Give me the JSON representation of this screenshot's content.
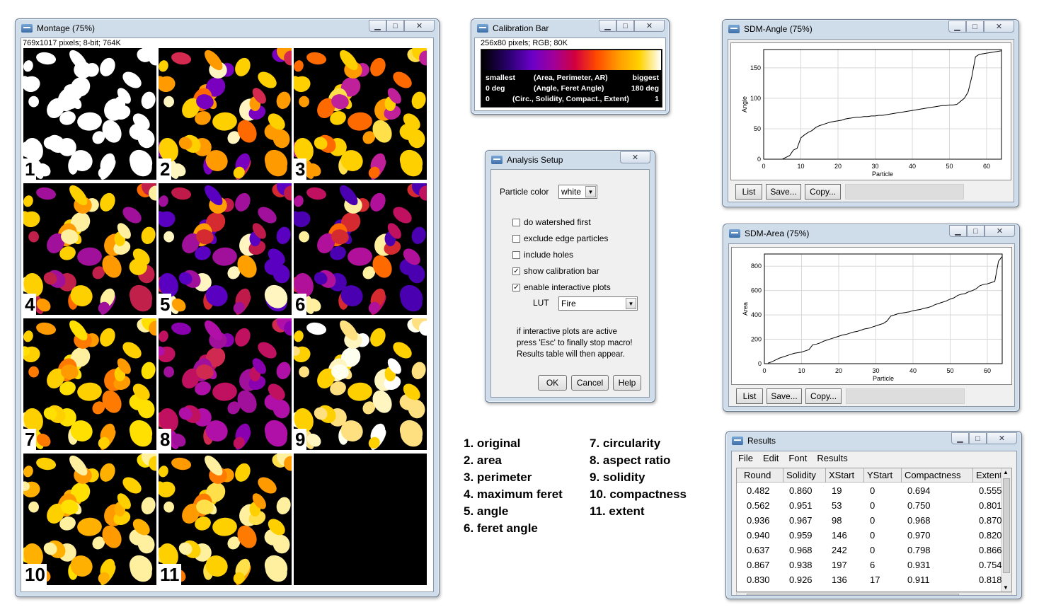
{
  "montage": {
    "title": "Montage (75%)",
    "info": "769x1017 pixels; 8-bit; 764K",
    "tiles": [
      {
        "label": "1",
        "palette": [
          "#ffffff"
        ]
      },
      {
        "label": "2",
        "palette": [
          "#ff9a00",
          "#ffd000",
          "#d42a50",
          "#7a00c0",
          "#ff6a00",
          "#fff5c0"
        ]
      },
      {
        "label": "3",
        "palette": [
          "#ff9a00",
          "#ffd000",
          "#ff6a00",
          "#c0209a",
          "#ffe04a"
        ]
      },
      {
        "label": "4",
        "palette": [
          "#ff6a00",
          "#ff9a00",
          "#c0204a",
          "#ffd000",
          "#a0109a",
          "#fff0a0"
        ]
      },
      {
        "label": "5",
        "palette": [
          "#c01a4a",
          "#d42a30",
          "#ffa000",
          "#fff5c0",
          "#5a00c0",
          "#a0109a"
        ]
      },
      {
        "label": "6",
        "palette": [
          "#b0109a",
          "#c01060",
          "#d42a30",
          "#ff6a00",
          "#fff0a0",
          "#4a00b0"
        ]
      },
      {
        "label": "7",
        "palette": [
          "#ffe000",
          "#ffd000",
          "#ff9a00",
          "#fff0a0",
          "#ff7a00"
        ]
      },
      {
        "label": "8",
        "palette": [
          "#a0109a",
          "#b010a8",
          "#c01060",
          "#8a00b0",
          "#d02a50"
        ]
      },
      {
        "label": "9",
        "palette": [
          "#fffff0",
          "#fff5c0",
          "#ffe080",
          "#ffd000",
          "#ffffff"
        ]
      },
      {
        "label": "10",
        "palette": [
          "#ffd000",
          "#ffe000",
          "#ff9a00",
          "#fff0a0",
          "#ffb000"
        ]
      },
      {
        "label": "11",
        "palette": [
          "#ffd000",
          "#ff9a00",
          "#ffe04a",
          "#ff7a00",
          "#fff0a0"
        ]
      },
      {
        "label": "",
        "palette": []
      }
    ]
  },
  "calibration": {
    "title": "Calibration Bar",
    "info": "256x80 pixels; RGB; 80K",
    "rows": [
      {
        "left": "smallest",
        "mid": "(Area, Perimeter, AR)",
        "right": "biggest"
      },
      {
        "left": "0 deg",
        "mid": "(Angle, Feret Angle)",
        "right": "180 deg"
      },
      {
        "left": "0",
        "mid": "(Circ., Solidity, Compact., Extent)",
        "right": "1"
      }
    ]
  },
  "setup": {
    "title": "Analysis Setup",
    "particle_color_label": "Particle color",
    "particle_color_value": "white",
    "checkboxes": [
      {
        "label": "do watershed first",
        "checked": false
      },
      {
        "label": "exclude edge particles",
        "checked": false
      },
      {
        "label": "include holes",
        "checked": false
      },
      {
        "label": "show calibration bar",
        "checked": true
      },
      {
        "label": "enable interactive plots",
        "checked": true
      }
    ],
    "lut_label": "LUT",
    "lut_value": "Fire",
    "note": [
      "if interactive plots are active",
      "press 'Esc' to finally stop macro!",
      "Results table will then appear."
    ],
    "ok": "OK",
    "cancel": "Cancel",
    "help": "Help"
  },
  "legend": {
    "left": [
      "1. original",
      "2. area",
      "3. perimeter",
      "4. maximum feret",
      "5. angle",
      "6. feret angle"
    ],
    "right": [
      "7. circularity",
      "8. aspect ratio",
      "9. solidity",
      "10. compactness",
      "11. extent"
    ]
  },
  "plot_buttons": {
    "list": "List",
    "save": "Save...",
    "copy": "Copy..."
  },
  "chart_data": [
    {
      "type": "line",
      "window_title": "SDM-Angle (75%)",
      "xlabel": "Particle",
      "ylabel": "Angle",
      "xlim": [
        0,
        64
      ],
      "ylim": [
        0,
        180
      ],
      "xticks": [
        0,
        10,
        20,
        30,
        40,
        50,
        60
      ],
      "yticks": [
        0,
        50,
        100,
        150
      ],
      "x": [
        1,
        2,
        3,
        4,
        5,
        6,
        7,
        8,
        9,
        10,
        11,
        12,
        13,
        14,
        15,
        16,
        17,
        18,
        19,
        20,
        21,
        22,
        23,
        24,
        25,
        26,
        27,
        28,
        29,
        30,
        31,
        32,
        33,
        34,
        35,
        36,
        37,
        38,
        39,
        40,
        41,
        42,
        43,
        44,
        45,
        46,
        47,
        48,
        49,
        50,
        51,
        52,
        53,
        54,
        55,
        56,
        57,
        58,
        59,
        60,
        61,
        62,
        63,
        64
      ],
      "y": [
        0,
        0,
        0,
        0,
        0,
        3,
        6,
        15,
        18,
        35,
        40,
        44,
        47,
        52,
        55,
        57,
        59,
        61,
        62,
        63,
        64,
        66,
        67,
        68,
        69,
        69,
        70,
        70,
        71,
        71,
        72,
        72,
        73,
        74,
        75,
        76,
        77,
        78,
        79,
        80,
        81,
        82,
        83,
        84,
        85,
        86,
        87,
        88,
        88,
        89,
        89,
        90,
        95,
        100,
        110,
        135,
        168,
        172,
        173,
        174,
        175,
        176,
        177,
        178
      ]
    },
    {
      "type": "line",
      "window_title": "SDM-Area (75%)",
      "xlabel": "Particle",
      "ylabel": "Area",
      "xlim": [
        0,
        64
      ],
      "ylim": [
        0,
        900
      ],
      "xticks": [
        0,
        10,
        20,
        30,
        40,
        50,
        60
      ],
      "yticks": [
        0,
        200,
        400,
        600,
        800
      ],
      "x": [
        1,
        2,
        3,
        4,
        5,
        6,
        7,
        8,
        9,
        10,
        11,
        12,
        13,
        14,
        15,
        16,
        17,
        18,
        19,
        20,
        21,
        22,
        23,
        24,
        25,
        26,
        27,
        28,
        29,
        30,
        31,
        32,
        33,
        34,
        35,
        36,
        37,
        38,
        39,
        40,
        41,
        42,
        43,
        44,
        45,
        46,
        47,
        48,
        49,
        50,
        51,
        52,
        53,
        54,
        55,
        56,
        57,
        58,
        59,
        60,
        61,
        62,
        63,
        64
      ],
      "y": [
        5,
        15,
        30,
        45,
        55,
        65,
        75,
        85,
        90,
        95,
        105,
        115,
        155,
        160,
        170,
        185,
        195,
        205,
        215,
        225,
        235,
        240,
        250,
        260,
        265,
        275,
        285,
        290,
        300,
        310,
        320,
        330,
        350,
        390,
        400,
        410,
        415,
        420,
        425,
        435,
        440,
        445,
        455,
        460,
        470,
        485,
        495,
        505,
        515,
        530,
        540,
        560,
        570,
        575,
        590,
        600,
        615,
        640,
        650,
        655,
        665,
        675,
        840,
        880
      ]
    }
  ],
  "results": {
    "title": "Results",
    "menu": [
      "File",
      "Edit",
      "Font",
      "Results"
    ],
    "columns": [
      "Round",
      "Solidity",
      "XStart",
      "YStart",
      "Compactness",
      "Extent"
    ],
    "rows": [
      [
        "0.482",
        "0.860",
        "19",
        "0",
        "0.694",
        "0.555"
      ],
      [
        "0.562",
        "0.951",
        "53",
        "0",
        "0.750",
        "0.801"
      ],
      [
        "0.936",
        "0.967",
        "98",
        "0",
        "0.968",
        "0.870"
      ],
      [
        "0.940",
        "0.959",
        "146",
        "0",
        "0.970",
        "0.820"
      ],
      [
        "0.637",
        "0.968",
        "242",
        "0",
        "0.798",
        "0.866"
      ],
      [
        "0.867",
        "0.938",
        "197",
        "6",
        "0.931",
        "0.754"
      ],
      [
        "0.830",
        "0.926",
        "136",
        "17",
        "0.911",
        "0.818"
      ]
    ]
  }
}
